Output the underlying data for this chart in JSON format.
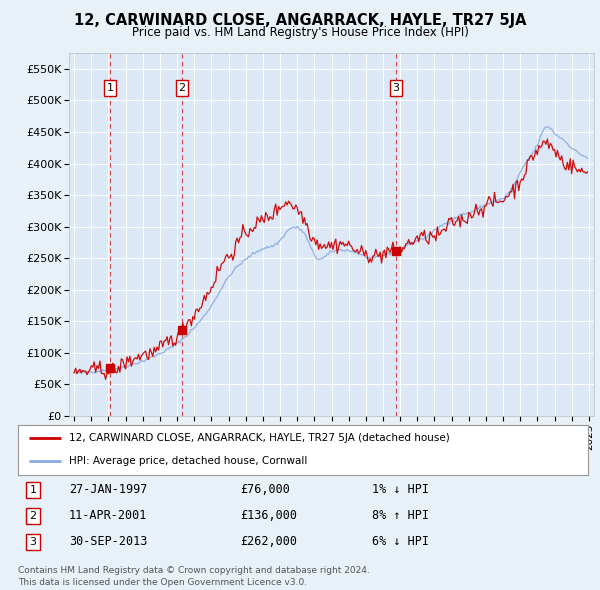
{
  "title": "12, CARWINARD CLOSE, ANGARRACK, HAYLE, TR27 5JA",
  "subtitle": "Price paid vs. HM Land Registry's House Price Index (HPI)",
  "legend_label_red": "12, CARWINARD CLOSE, ANGARRACK, HAYLE, TR27 5JA (detached house)",
  "legend_label_blue": "HPI: Average price, detached house, Cornwall",
  "transactions": [
    {
      "num": 1,
      "date": "27-JAN-1997",
      "price": 76000,
      "pct": "1%",
      "dir": "↓",
      "x_year": 1997.08
    },
    {
      "num": 2,
      "date": "11-APR-2001",
      "price": 136000,
      "pct": "8%",
      "dir": "↑",
      "x_year": 2001.28
    },
    {
      "num": 3,
      "date": "30-SEP-2013",
      "price": 262000,
      "pct": "6%",
      "dir": "↓",
      "x_year": 2013.75
    }
  ],
  "footer": "Contains HM Land Registry data © Crown copyright and database right 2024.\nThis data is licensed under the Open Government Licence v3.0.",
  "fig_bg_color": "#e8f0f8",
  "plot_bg_color": "#dce8f5",
  "ylim": [
    0,
    575000
  ],
  "xlim_left": 1994.7,
  "xlim_right": 2025.3,
  "yticks": [
    0,
    50000,
    100000,
    150000,
    200000,
    250000,
    300000,
    350000,
    400000,
    450000,
    500000,
    550000
  ],
  "ytick_labels": [
    "£0",
    "£50K",
    "£100K",
    "£150K",
    "£200K",
    "£250K",
    "£300K",
    "£350K",
    "£400K",
    "£450K",
    "£500K",
    "£550K"
  ],
  "red_color": "#cc0000",
  "blue_color": "#88aadd",
  "grid_color": "#ffffff",
  "spine_color": "#bbbbbb"
}
